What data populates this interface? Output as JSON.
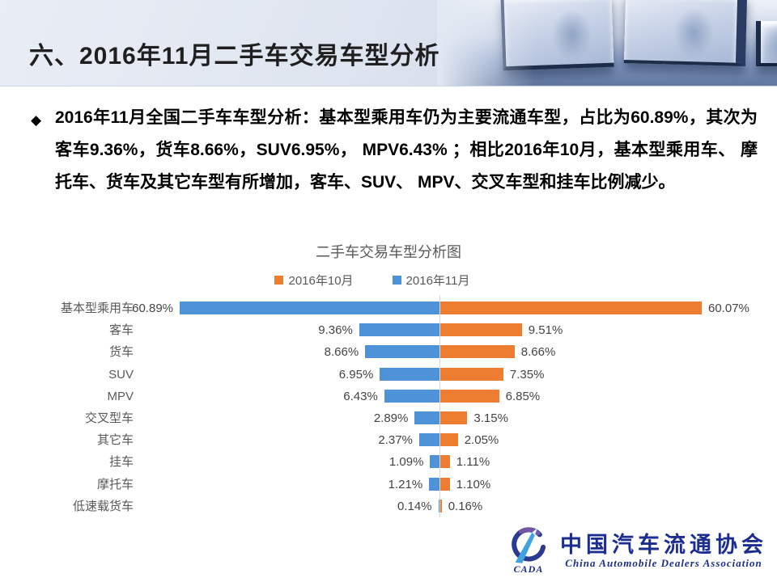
{
  "header": {
    "title": "六、2016年11月二手车交易车型分析"
  },
  "summary": {
    "bullet": "◆",
    "paragraph": "2016年11月全国二手车车型分析：基本型乘用车仍为主要流通车型，占比为60.89%，其次为客车9.36%，货车8.66%，SUV6.95%， MPV6.43% ；相比2016年10月，基本型乘用车、 摩托车、货车及其它车型有所增加，客车、SUV、 MPV、交叉车型和挂车比例减少。"
  },
  "chart_data": {
    "type": "bar",
    "orientation": "horizontal-diverging",
    "title": "二手车交易车型分析图",
    "categories": [
      "基本型乘用车",
      "客车",
      "货车",
      "SUV",
      "MPV",
      "交叉型车",
      "其它车",
      "挂车",
      "摩托车",
      "低速载货车"
    ],
    "series": [
      {
        "name": "2016年10月",
        "side": "right",
        "color": "#ED7D31",
        "values": [
          60.07,
          9.51,
          8.66,
          7.35,
          6.85,
          3.15,
          2.05,
          1.11,
          1.1,
          0.16
        ]
      },
      {
        "name": "2016年11月",
        "side": "left",
        "color": "#4E93D8",
        "values": [
          60.89,
          9.36,
          8.66,
          6.95,
          6.43,
          2.89,
          2.37,
          1.09,
          1.21,
          0.14
        ]
      }
    ],
    "value_suffix": "%",
    "value_decimals": 2,
    "xlim_percent": [
      -30.4,
      30.4
    ],
    "clipped_categories": [
      "基本型乘用车"
    ],
    "legend_position": "top",
    "grid": false,
    "axis_line_color": "#d9d9d9",
    "label_color": "#444444",
    "category_color": "#595959"
  },
  "footer": {
    "logo_text": "CADA",
    "org_cn": "中国汽车流通协会",
    "org_en": "China Automobile Dealers Association",
    "logo_color": "#1b2d8e"
  }
}
